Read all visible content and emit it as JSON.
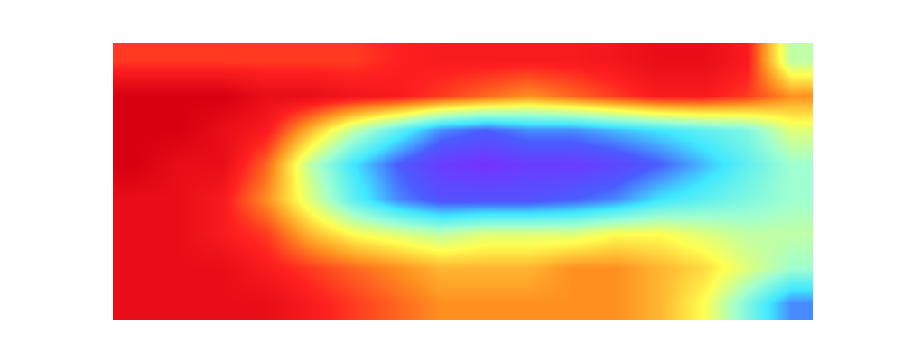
{
  "chart_data": {
    "type": "heatmap",
    "tick_labels": false,
    "grid": false,
    "zlim": [
      0,
      1
    ],
    "cells": [
      [
        0.85,
        0.85,
        0.85,
        0.85,
        0.85,
        0.85,
        0.88,
        0.9,
        0.9,
        0.9,
        0.9,
        0.92,
        0.95,
        0.95,
        0.9,
        0.5
      ],
      [
        1,
        1,
        1,
        0.95,
        0.95,
        0.92,
        0.9,
        0.85,
        0.8,
        0.75,
        0.8,
        0.85,
        0.9,
        0.9,
        0.85,
        0.75
      ],
      [
        1,
        1,
        0.95,
        0.9,
        0.7,
        0.5,
        0.35,
        0.2,
        0.15,
        0.2,
        0.2,
        0.25,
        0.3,
        0.35,
        0.4,
        0.55
      ],
      [
        1,
        0.95,
        0.95,
        0.8,
        0.5,
        0.3,
        0.15,
        0.05,
        0.02,
        0.05,
        0.05,
        0.08,
        0.15,
        0.25,
        0.35,
        0.45
      ],
      [
        0.95,
        0.95,
        0.9,
        0.75,
        0.55,
        0.35,
        0.2,
        0.12,
        0.12,
        0.12,
        0.15,
        0.2,
        0.3,
        0.35,
        0.4,
        0.45
      ],
      [
        0.95,
        0.95,
        0.9,
        0.85,
        0.7,
        0.6,
        0.55,
        0.5,
        0.55,
        0.55,
        0.55,
        0.6,
        0.6,
        0.55,
        0.5,
        0.5
      ],
      [
        0.95,
        0.95,
        0.95,
        0.9,
        0.85,
        0.8,
        0.75,
        0.7,
        0.7,
        0.7,
        0.75,
        0.75,
        0.7,
        0.65,
        0.55,
        0.45
      ],
      [
        0.95,
        0.95,
        0.95,
        0.95,
        0.9,
        0.85,
        0.8,
        0.75,
        0.75,
        0.75,
        0.75,
        0.75,
        0.7,
        0.6,
        0.4,
        0.2
      ]
    ]
  }
}
